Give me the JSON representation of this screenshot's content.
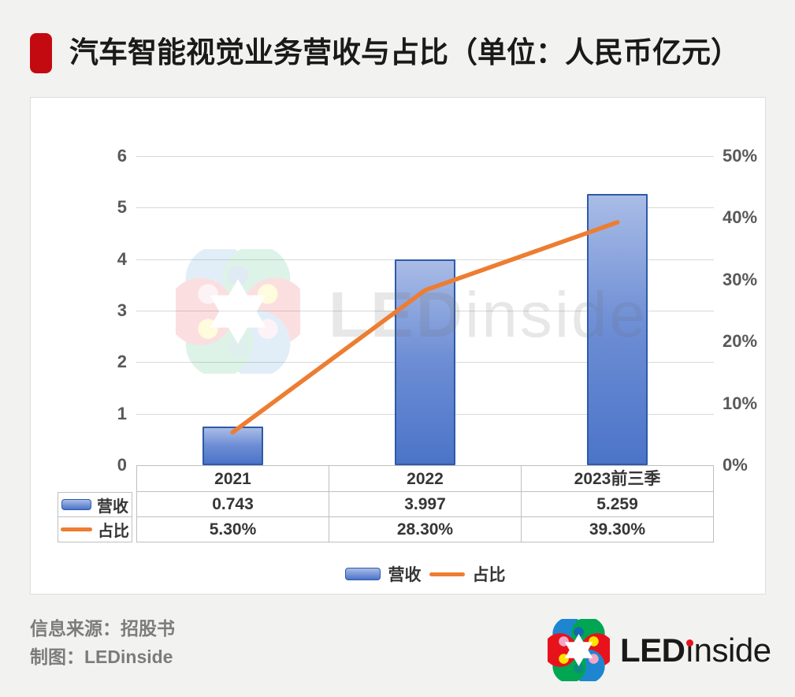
{
  "title": {
    "text": "汽车智能视觉业务营收与占比（单位：人民币亿元）"
  },
  "chart_data": {
    "type": "combo",
    "categories": [
      "2021",
      "2022",
      "2023前三季"
    ],
    "series": [
      {
        "name": "营收",
        "type": "bar",
        "axis": "left",
        "values": [
          0.743,
          3.997,
          5.259
        ],
        "color": "#4472C4"
      },
      {
        "name": "占比",
        "type": "line",
        "axis": "right",
        "values": [
          5.3,
          28.3,
          39.3
        ],
        "color": "#ED7D31"
      }
    ],
    "left_axis": {
      "min": 0,
      "max": 6,
      "tick_labels": [
        "6",
        "5",
        "4",
        "3",
        "2",
        "1",
        "0"
      ]
    },
    "right_axis": {
      "min": 0,
      "max": 50,
      "tick_labels": [
        "50%",
        "40%",
        "30%",
        "20%",
        "10%",
        "0%"
      ]
    },
    "grid": true,
    "legend_position": "bottom",
    "title": "汽车智能视觉业务营收与占比",
    "unit": "人民币亿元"
  },
  "table": {
    "revenue_label": "营收",
    "pct_label": "占比",
    "revenue_display": [
      "0.743",
      "3.997",
      "5.259"
    ],
    "pct_display": [
      "5.30%",
      "28.30%",
      "39.30%"
    ]
  },
  "legend": {
    "revenue": "营收",
    "pct": "占比"
  },
  "watermark": {
    "bold": "LED",
    "rest": "inside"
  },
  "footer": {
    "source": "信息来源：招股书",
    "credit": "制图：LEDinside",
    "logo_bold": "LED",
    "logo_rest": "inside"
  },
  "colors": {
    "accent_red": "#C30A11",
    "bar_fill_top": "#A9BCE6",
    "bar_fill_bottom": "#4B74C8",
    "bar_border": "#2E5AA8",
    "line_orange": "#ED7D31",
    "logo_blue": "#1E86D0",
    "logo_green": "#00A651",
    "logo_red": "#E8121C",
    "logo_yellow": "#FFE400",
    "logo_pink": "#F2A7C6"
  }
}
